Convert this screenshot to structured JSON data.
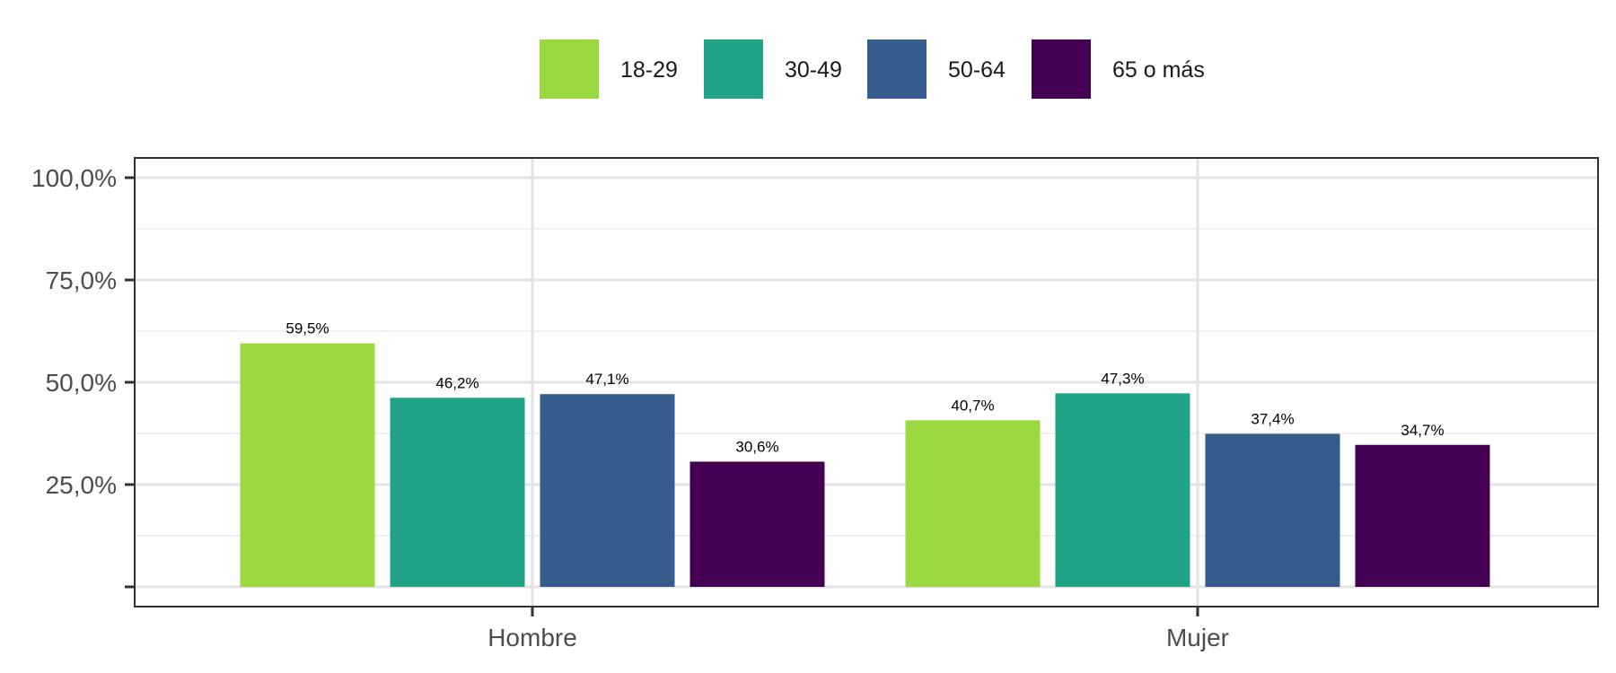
{
  "chart_data": {
    "type": "bar",
    "categories": [
      "Hombre",
      "Mujer"
    ],
    "series": [
      {
        "name": "18-29",
        "color": "#9ad93f",
        "values": [
          59.5,
          40.7
        ],
        "labels": [
          "59,5%",
          "40,7%"
        ]
      },
      {
        "name": "30-49",
        "color": "#20a387",
        "values": [
          46.2,
          47.3
        ],
        "labels": [
          "46,2%",
          "47,3%"
        ]
      },
      {
        "name": "50-64",
        "color": "#365c8d",
        "values": [
          47.1,
          37.4
        ],
        "labels": [
          "47,1%",
          "37,4%"
        ]
      },
      {
        "name": "65 o más",
        "color": "#440154",
        "values": [
          30.6,
          34.7
        ],
        "labels": [
          "30,6%",
          "34,7%"
        ]
      }
    ],
    "y_ticks": [
      {
        "value": 0,
        "label": ""
      },
      {
        "value": 25,
        "label": "25,0%"
      },
      {
        "value": 50,
        "label": "50,0%"
      },
      {
        "value": 75,
        "label": "75,0%"
      },
      {
        "value": 100,
        "label": "100,0%"
      }
    ],
    "ylim": [
      0,
      100
    ],
    "grid": true,
    "legend_position": "top",
    "title": "",
    "xlabel": "",
    "ylabel": ""
  }
}
